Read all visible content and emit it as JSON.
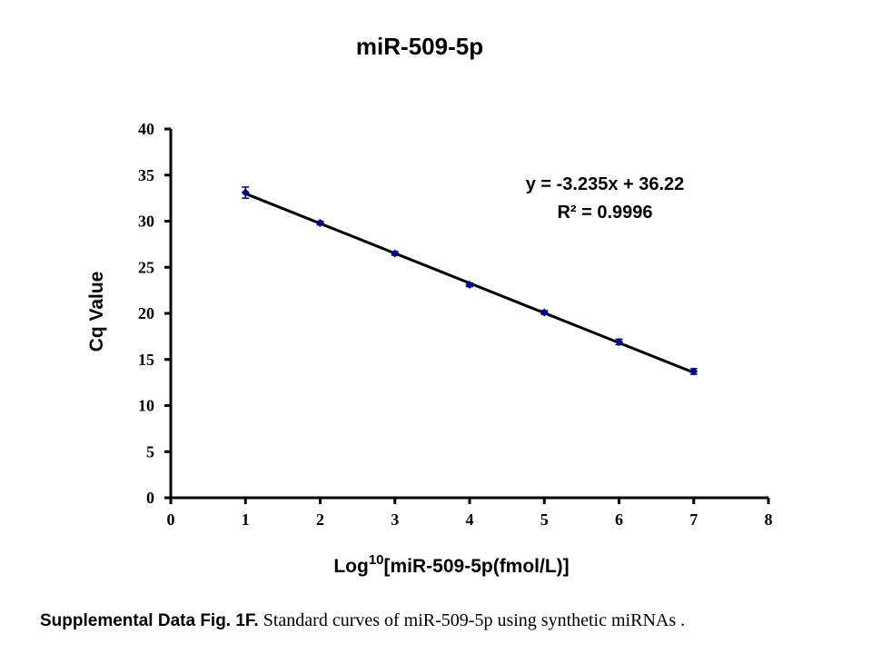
{
  "chart_data": {
    "type": "scatter",
    "title": "miR-509-5p",
    "xlabel_prefix": "Log",
    "xlabel_superscript": "10",
    "xlabel_rest": "[miR-509-5p(fmol/L)]",
    "ylabel": "Cq Value",
    "xlim": [
      0,
      8
    ],
    "ylim": [
      0,
      40
    ],
    "xticks": [
      "0",
      "1",
      "2",
      "3",
      "4",
      "5",
      "6",
      "7",
      "8"
    ],
    "yticks": [
      "0",
      "5",
      "10",
      "15",
      "20",
      "25",
      "30",
      "35",
      "40"
    ],
    "grid": false,
    "series": [
      {
        "x": [
          1,
          2,
          3,
          4,
          5,
          6,
          7
        ],
        "y": [
          33.1,
          29.8,
          26.5,
          23.1,
          20.1,
          16.9,
          13.7
        ],
        "error": [
          0.6,
          0.2,
          0.2,
          0.2,
          0.2,
          0.3,
          0.3
        ],
        "color": "#000080"
      }
    ],
    "trendline": {
      "slope": -3.235,
      "intercept": 36.22,
      "color": "#000000"
    },
    "annotations": {
      "equation": "y = -3.235x + 36.22",
      "r_squared": "R² = 0.9996"
    }
  },
  "caption": {
    "bold": "Supplemental Data Fig. 1F.",
    "text": " Standard curves of miR-509-5p using synthetic miRNAs ."
  }
}
